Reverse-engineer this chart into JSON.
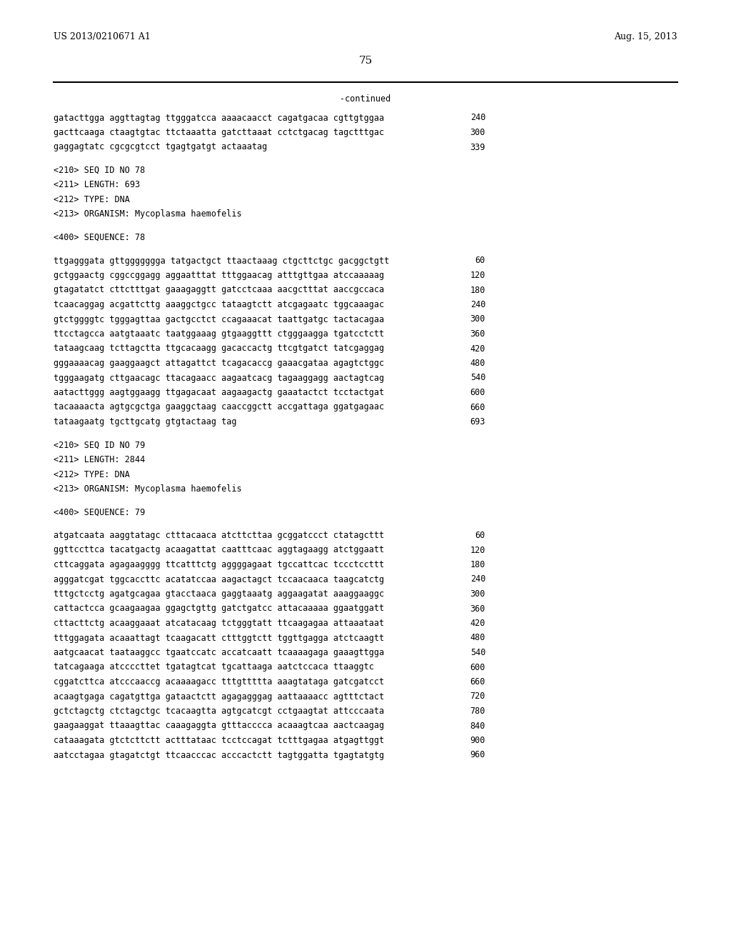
{
  "background_color": "#ffffff",
  "header_left": "US 2013/0210671 A1",
  "header_right": "Aug. 15, 2013",
  "page_number": "75",
  "continued_label": "-continued",
  "content": [
    {
      "type": "seq_line",
      "text": "gatacttgga aggttagtag ttgggatcca aaaacaacct cagatgacaa cgttgtggaa",
      "num": "240"
    },
    {
      "type": "seq_line",
      "text": "gacttcaaga ctaagtgtac ttctaaatta gatcttaaat cctctgacag tagctttgac",
      "num": "300"
    },
    {
      "type": "seq_line",
      "text": "gaggagtatc cgcgcgtcct tgagtgatgt actaaatag",
      "num": "339"
    },
    {
      "type": "blank"
    },
    {
      "type": "meta",
      "text": "<210> SEQ ID NO 78"
    },
    {
      "type": "meta",
      "text": "<211> LENGTH: 693"
    },
    {
      "type": "meta",
      "text": "<212> TYPE: DNA"
    },
    {
      "type": "meta",
      "text": "<213> ORGANISM: Mycoplasma haemofelis"
    },
    {
      "type": "blank"
    },
    {
      "type": "meta",
      "text": "<400> SEQUENCE: 78"
    },
    {
      "type": "blank"
    },
    {
      "type": "seq_line",
      "text": "ttgagggata gttggggggga tatgactgct ttaactaaag ctgcttctgc gacggctgtt",
      "num": "60"
    },
    {
      "type": "seq_line",
      "text": "gctggaactg cggccggagg aggaatttat tttggaacag atttgttgaa atccaaaaag",
      "num": "120"
    },
    {
      "type": "seq_line",
      "text": "gtagatatct cttctttgat gaaagaggtt gatcctcaaa aacgctttat aaccgccaca",
      "num": "180"
    },
    {
      "type": "seq_line",
      "text": "tcaacaggag acgattcttg aaaggctgcc tataagtctt atcgagaatc tggcaaagac",
      "num": "240"
    },
    {
      "type": "seq_line",
      "text": "gtctggggtc tgggagttaa gactgcctct ccagaaacat taattgatgc tactacagaa",
      "num": "300"
    },
    {
      "type": "seq_line",
      "text": "ttcctagcca aatgtaaatc taatggaaag gtgaaggttt ctgggaagga tgatcctctt",
      "num": "360"
    },
    {
      "type": "seq_line",
      "text": "tataagcaag tcttagctta ttgcacaagg gacaccactg ttcgtgatct tatcgaggag",
      "num": "420"
    },
    {
      "type": "seq_line",
      "text": "gggaaaacag gaaggaagct attagattct tcagacaccg gaaacgataa agagtctggc",
      "num": "480"
    },
    {
      "type": "seq_line",
      "text": "tgggaagatg cttgaacagc ttacagaacc aagaatcacg tagaaggagg aactagtcag",
      "num": "540"
    },
    {
      "type": "seq_line",
      "text": "aatacttggg aagtggaagg ttgagacaat aagaagactg gaaatactct tcctactgat",
      "num": "600"
    },
    {
      "type": "seq_line",
      "text": "tacaaaacta agtgcgctga gaaggctaag caaccggctt accgattaga ggatgagaac",
      "num": "660"
    },
    {
      "type": "seq_line",
      "text": "tataagaatg tgcttgcatg gtgtactaag tag",
      "num": "693"
    },
    {
      "type": "blank"
    },
    {
      "type": "meta",
      "text": "<210> SEQ ID NO 79"
    },
    {
      "type": "meta",
      "text": "<211> LENGTH: 2844"
    },
    {
      "type": "meta",
      "text": "<212> TYPE: DNA"
    },
    {
      "type": "meta",
      "text": "<213> ORGANISM: Mycoplasma haemofelis"
    },
    {
      "type": "blank"
    },
    {
      "type": "meta",
      "text": "<400> SEQUENCE: 79"
    },
    {
      "type": "blank"
    },
    {
      "type": "seq_line",
      "text": "atgatcaata aaggtatagc ctttacaaca atcttcttaa gcggatccct ctatagcttt",
      "num": "60"
    },
    {
      "type": "seq_line",
      "text": "ggttccttca tacatgactg acaagattat caatttcaac aggtagaagg atctggaatt",
      "num": "120"
    },
    {
      "type": "seq_line",
      "text": "cttcaggata agagaagggg ttcatttctg aggggagaat tgccattcac tccctccttt",
      "num": "180"
    },
    {
      "type": "seq_line",
      "text": "agggatcgat tggcaccttc acatatccaa aagactagct tccaacaaca taagcatctg",
      "num": "240"
    },
    {
      "type": "seq_line",
      "text": "tttgctcctg agatgcagaa gtacctaaca gaggtaaatg aggaagatat aaaggaaggc",
      "num": "300"
    },
    {
      "type": "seq_line",
      "text": "cattactcca gcaagaagaa ggagctgttg gatctgatcc attacaaaaa ggaatggatt",
      "num": "360"
    },
    {
      "type": "seq_line",
      "text": "cttacttctg acaaggaaat atcatacaag tctgggtatt ttcaagagaa attaaataat",
      "num": "420"
    },
    {
      "type": "seq_line",
      "text": "tttggagata acaaattagt tcaagacatt ctttggtctt tggttgagga atctcaagtt",
      "num": "480"
    },
    {
      "type": "seq_line",
      "text": "aatgcaacat taataaggcc tgaatccatc accatcaatt tcaaaagaga gaaagttgga",
      "num": "540"
    },
    {
      "type": "seq_line",
      "text": "tatcagaaga atccccttet tgatagtcat tgcattaaga aatctccaca ttaaggtc",
      "num": "600"
    },
    {
      "type": "seq_line",
      "text": "cggatcttca atcccaaccg acaaaagacc tttgttttta aaagtataga gatcgatcct",
      "num": "660"
    },
    {
      "type": "seq_line",
      "text": "acaagtgaga cagatgttga gataactctt agagagggag aattaaaacc agtttctact",
      "num": "720"
    },
    {
      "type": "seq_line",
      "text": "gctctagctg ctctagctgc tcacaagtta agtgcatcgt cctgaagtat attcccaata",
      "num": "780"
    },
    {
      "type": "seq_line",
      "text": "gaagaaggat ttaaagttac caaagaggta gtttacccca acaaagtcaa aactcaagag",
      "num": "840"
    },
    {
      "type": "seq_line",
      "text": "cataaagata gtctcttctt actttataac tcctccagat tctttgagaa atgagttggt",
      "num": "900"
    },
    {
      "type": "seq_line",
      "text": "aatcctagaa gtagatctgt ttcaacccac acccactctt tagtggatta tgagtatgtg",
      "num": "960"
    }
  ]
}
